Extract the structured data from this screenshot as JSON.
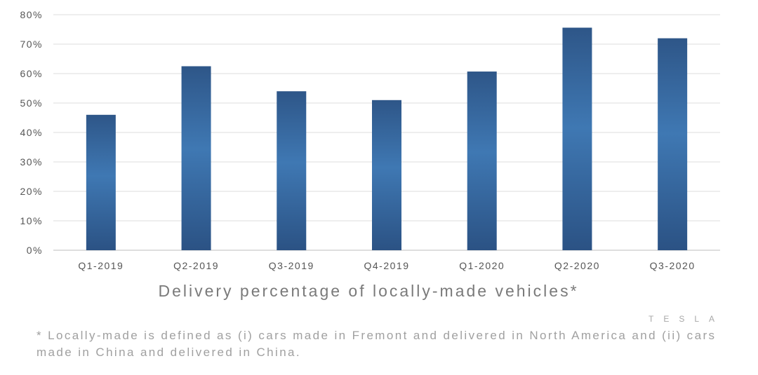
{
  "chart_data": {
    "type": "bar",
    "categories": [
      "Q1-2019",
      "Q2-2019",
      "Q3-2019",
      "Q4-2019",
      "Q1-2020",
      "Q2-2020",
      "Q3-2020"
    ],
    "values": [
      46,
      62.5,
      54,
      51,
      60.7,
      75.6,
      72
    ],
    "yticks": [
      "0%",
      "10%",
      "20%",
      "30%",
      "40%",
      "50%",
      "60%",
      "70%",
      "80%"
    ],
    "ylim": [
      0,
      80
    ],
    "grid": true,
    "bar_color": "#3a6ea5",
    "title": "",
    "xlabel": "Delivery percentage of locally-made vehicles*",
    "ylabel": ""
  },
  "logo_text": "TESLA",
  "footnote": "* Locally-made is defined as (i) cars made in Fremont and delivered in North America and (ii) cars made in China and delivered in China."
}
